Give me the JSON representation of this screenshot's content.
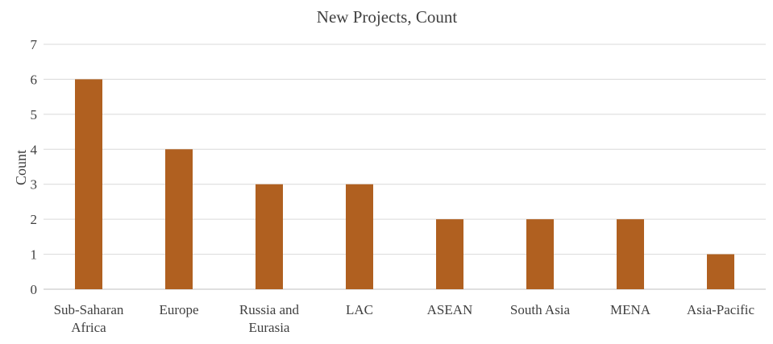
{
  "chart_data": {
    "type": "bar",
    "title": "New Projects, Count",
    "xlabel": "",
    "ylabel": "Count",
    "ylim": [
      0,
      7
    ],
    "yticks": [
      "0",
      "1",
      "2",
      "3",
      "4",
      "5",
      "6",
      "7"
    ],
    "grid": true,
    "legend": "none",
    "bar_color": "#b06020",
    "categories": [
      [
        "Sub-Saharan",
        "Africa"
      ],
      [
        "Europe"
      ],
      [
        "Russia and",
        "Eurasia"
      ],
      [
        "LAC"
      ],
      [
        "ASEAN"
      ],
      [
        "South Asia"
      ],
      [
        "MENA"
      ],
      [
        "Asia-Pacific"
      ]
    ],
    "values": [
      6,
      4,
      3,
      3,
      2,
      2,
      2,
      1
    ]
  }
}
